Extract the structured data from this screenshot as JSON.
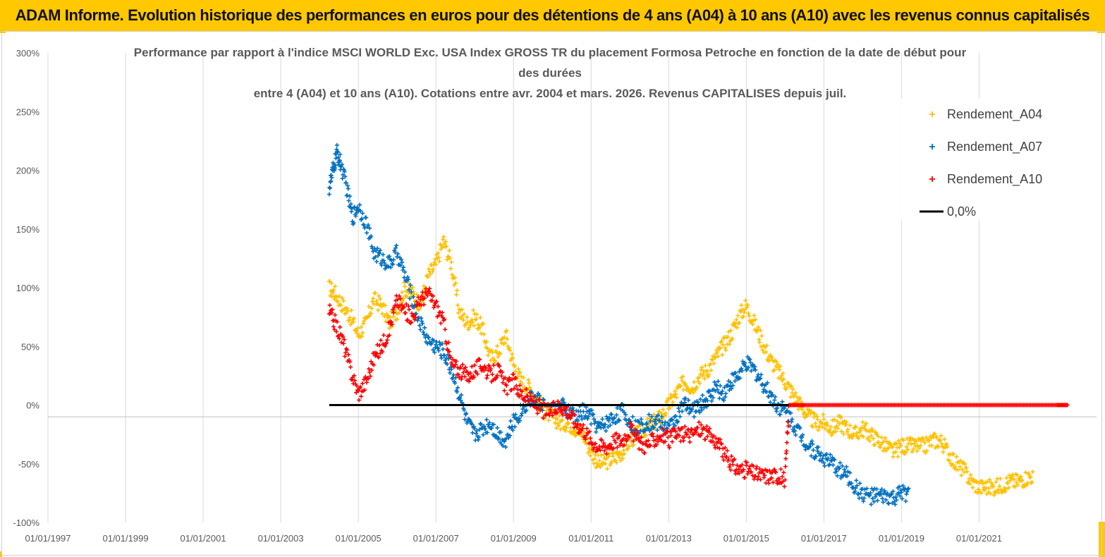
{
  "header": {
    "title": "ADAM Informe. Evolution historique des performances en euros pour des détentions de 4 ans (A04) à 10 ans (A10) avec les revenus connus capitalisés"
  },
  "colors": {
    "banner": "#ffc800",
    "a04": "#ffc000",
    "a07": "#0070c0",
    "a10": "#ff0000",
    "zero": "#000000",
    "grid": "#d9d9d9"
  },
  "chart_data": {
    "type": "scatter",
    "title_lines": [
      "Performance par rapport à l'indice MSCI WORLD Exc. USA Index GROSS TR  du placement Formosa Petroche  en fonction de la date de début pour",
      "des durées",
      "entre 4 (A04) et 10 ans (A10). Cotations entre avr. 2004 et mars. 2026. Revenus CAPITALISES depuis juil."
    ],
    "x_unit": "year",
    "xlim": [
      1997.0,
      2023.3
    ],
    "ylim": [
      -100,
      300
    ],
    "y_ticks": [
      300,
      250,
      200,
      150,
      100,
      50,
      0,
      -50,
      -100
    ],
    "y_tick_labels": [
      "300%",
      "250%",
      "200%",
      "150%",
      "100%",
      "50%",
      "0%",
      "-50%",
      "-100%"
    ],
    "x_ticks": [
      1997,
      1999,
      2001,
      2003,
      2005,
      2007,
      2009,
      2011,
      2013,
      2015,
      2017,
      2019,
      2021
    ],
    "x_tick_labels": [
      "01/01/1997",
      "01/01/1999",
      "01/01/2001",
      "01/01/2003",
      "01/01/2005",
      "01/01/2007",
      "01/01/2009",
      "01/01/2011",
      "01/01/2013",
      "01/01/2015",
      "01/01/2017",
      "01/01/2019",
      "01/01/2021"
    ],
    "grid": true,
    "legend_position": "top-right",
    "series": [
      {
        "name": "Rendement_A04",
        "marker": "+",
        "x": [
          2004.25,
          2004.4,
          2004.6,
          2004.8,
          2005.0,
          2005.2,
          2005.4,
          2005.6,
          2005.8,
          2006.0,
          2006.2,
          2006.4,
          2006.6,
          2006.8,
          2007.0,
          2007.2,
          2007.4,
          2007.6,
          2007.8,
          2008.0,
          2008.2,
          2008.4,
          2008.6,
          2008.8,
          2009.0,
          2009.2,
          2009.4,
          2009.6,
          2009.8,
          2010.0,
          2010.2,
          2010.4,
          2010.6,
          2010.8,
          2011.0,
          2011.2,
          2011.4,
          2011.6,
          2011.8,
          2012.0,
          2012.2,
          2012.4,
          2012.6,
          2012.8,
          2013.0,
          2013.2,
          2013.4,
          2013.6,
          2013.8,
          2014.0,
          2014.2,
          2014.4,
          2014.6,
          2014.8,
          2015.0,
          2015.2,
          2015.4,
          2015.6,
          2015.8,
          2016.0,
          2016.2,
          2016.4,
          2016.6,
          2016.8,
          2017.0,
          2017.2,
          2017.4,
          2017.6,
          2017.8,
          2018.0,
          2018.2,
          2018.4,
          2018.6,
          2018.8,
          2019.0,
          2019.2,
          2019.4,
          2019.6,
          2019.8,
          2020.0,
          2020.2,
          2020.4,
          2020.6,
          2020.8,
          2021.0,
          2021.2,
          2021.4,
          2021.6,
          2021.8,
          2022.0,
          2022.2,
          2022.4
        ],
        "y": [
          100,
          95,
          85,
          75,
          60,
          70,
          90,
          85,
          70,
          80,
          100,
          95,
          85,
          110,
          120,
          140,
          120,
          80,
          70,
          75,
          65,
          40,
          45,
          60,
          35,
          20,
          15,
          5,
          -5,
          -10,
          -15,
          -15,
          -20,
          -25,
          -40,
          -50,
          -48,
          -45,
          -40,
          -30,
          -25,
          -20,
          -15,
          -10,
          0,
          10,
          20,
          15,
          25,
          30,
          40,
          50,
          60,
          75,
          85,
          70,
          55,
          40,
          30,
          20,
          10,
          0,
          -10,
          -15,
          -15,
          -20,
          -15,
          -20,
          -25,
          -20,
          -25,
          -30,
          -35,
          -40,
          -35,
          -35,
          -35,
          -35,
          -30,
          -30,
          -40,
          -50,
          -55,
          -65,
          -70,
          -70,
          -70,
          -68,
          -65,
          -65,
          -62,
          -60
        ]
      },
      {
        "name": "Rendement_A07",
        "marker": "+",
        "x": [
          2004.25,
          2004.35,
          2004.45,
          2004.55,
          2004.7,
          2004.85,
          2005.0,
          2005.2,
          2005.4,
          2005.6,
          2005.8,
          2006.0,
          2006.2,
          2006.4,
          2006.6,
          2006.8,
          2007.0,
          2007.2,
          2007.4,
          2007.6,
          2007.8,
          2008.0,
          2008.2,
          2008.4,
          2008.6,
          2008.8,
          2009.0,
          2009.2,
          2009.4,
          2009.6,
          2009.8,
          2010.0,
          2010.2,
          2010.4,
          2010.6,
          2010.8,
          2011.0,
          2011.2,
          2011.4,
          2011.6,
          2011.8,
          2012.0,
          2012.2,
          2012.4,
          2012.6,
          2012.8,
          2013.0,
          2013.2,
          2013.4,
          2013.6,
          2013.8,
          2014.0,
          2014.2,
          2014.4,
          2014.6,
          2014.8,
          2015.0,
          2015.2,
          2015.4,
          2015.6,
          2015.8,
          2016.0,
          2016.2,
          2016.4,
          2016.6,
          2016.8,
          2017.0,
          2017.2,
          2017.4,
          2017.6,
          2017.8,
          2018.0,
          2018.2,
          2018.4,
          2018.6,
          2018.8,
          2019.0,
          2019.2
        ],
        "y": [
          185,
          200,
          215,
          205,
          185,
          160,
          170,
          155,
          130,
          125,
          120,
          130,
          110,
          90,
          70,
          55,
          50,
          45,
          30,
          10,
          -15,
          -25,
          -20,
          -15,
          -25,
          -30,
          -15,
          -5,
          5,
          5,
          0,
          0,
          0,
          -5,
          -10,
          -5,
          -10,
          -20,
          -15,
          -10,
          -5,
          -15,
          -20,
          -15,
          -15,
          -15,
          -20,
          -10,
          0,
          -5,
          0,
          5,
          15,
          10,
          20,
          25,
          35,
          30,
          20,
          10,
          0,
          -5,
          -15,
          -25,
          -35,
          -40,
          -45,
          -50,
          -55,
          -60,
          -70,
          -75,
          -78,
          -78,
          -78,
          -80,
          -75,
          -75
        ]
      },
      {
        "name": "Rendement_A10",
        "marker": "+",
        "x": [
          2004.25,
          2004.4,
          2004.6,
          2004.8,
          2005.0,
          2005.2,
          2005.4,
          2005.6,
          2005.8,
          2006.0,
          2006.2,
          2006.4,
          2006.6,
          2006.8,
          2007.0,
          2007.2,
          2007.4,
          2007.6,
          2007.8,
          2008.0,
          2008.2,
          2008.4,
          2008.6,
          2008.8,
          2009.0,
          2009.2,
          2009.4,
          2009.6,
          2009.8,
          2010.0,
          2010.2,
          2010.4,
          2010.6,
          2010.8,
          2011.0,
          2011.2,
          2011.4,
          2011.6,
          2011.8,
          2012.0,
          2012.2,
          2012.4,
          2012.6,
          2012.8,
          2013.0,
          2013.2,
          2013.4,
          2013.6,
          2013.8,
          2014.0,
          2014.2,
          2014.4,
          2014.6,
          2014.8,
          2015.0,
          2015.2,
          2015.4,
          2015.6,
          2015.8,
          2016.0,
          2016.1,
          2016.5,
          2017.0,
          2017.5,
          2018.0,
          2018.5,
          2019.0,
          2019.5,
          2020.0,
          2020.5,
          2021.0,
          2021.5,
          2022.0,
          2022.5,
          2023.0,
          2023.3
        ],
        "y": [
          80,
          70,
          55,
          30,
          10,
          20,
          40,
          50,
          65,
          90,
          80,
          75,
          90,
          95,
          85,
          70,
          35,
          30,
          25,
          30,
          35,
          25,
          30,
          15,
          20,
          10,
          5,
          0,
          -5,
          -5,
          0,
          -5,
          -15,
          -20,
          -30,
          -35,
          -35,
          -30,
          -30,
          -20,
          -30,
          -35,
          -30,
          -25,
          -30,
          -25,
          -25,
          -25,
          -20,
          -25,
          -30,
          -40,
          -50,
          -55,
          -55,
          -58,
          -60,
          -60,
          -60,
          -63,
          0,
          0,
          0,
          0,
          0,
          0,
          0,
          0,
          0,
          0,
          0,
          0,
          0,
          0,
          0,
          0
        ]
      },
      {
        "name": "0,0%",
        "marker": "line",
        "x": [
          2004.25,
          2016.1
        ],
        "y": [
          0,
          0
        ]
      }
    ]
  }
}
